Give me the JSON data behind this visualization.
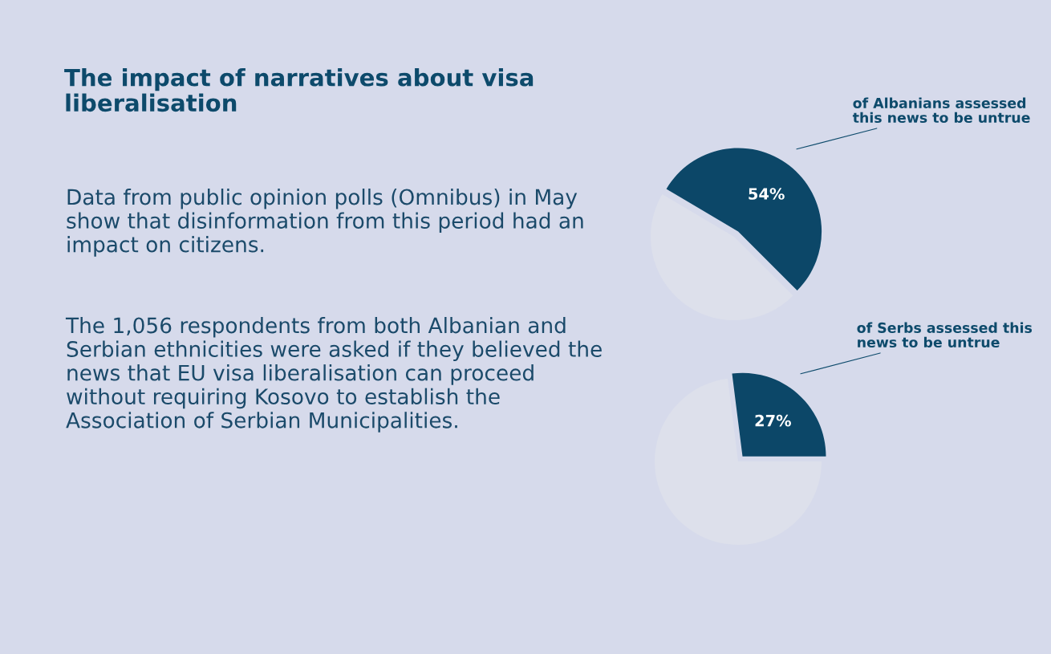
{
  "chart_data": [
    {
      "type": "other",
      "title": "The impact of narratives about visa liberalisation",
      "annotations": [
        "Data from public opinion polls (Omnibus) in May show that disinformation from this period had an impact on citizens.",
        "The 1,056 respondents from both Albanian and Serbian ethnicities were asked if they believed the news that EU visa liberalisation can proceed without requiring Kosovo to establish the Association of Serbian Municipalities."
      ]
    },
    {
      "type": "pie",
      "categories": [
        null,
        null
      ],
      "values": [
        54,
        46
      ],
      "colors": [
        "#0c4768",
        "#dde0eb"
      ],
      "value_labels": [
        "54%",
        null
      ],
      "annotations": [
        "of Albanians assessed this news to be untrue"
      ]
    },
    {
      "type": "pie",
      "categories": [
        null,
        null
      ],
      "values": [
        27,
        73
      ],
      "colors": [
        "#0c4768",
        "#dde0eb"
      ],
      "value_labels": [
        "27%",
        null
      ],
      "annotations": [
        "of Serbs assessed this news to be untrue"
      ]
    }
  ]
}
